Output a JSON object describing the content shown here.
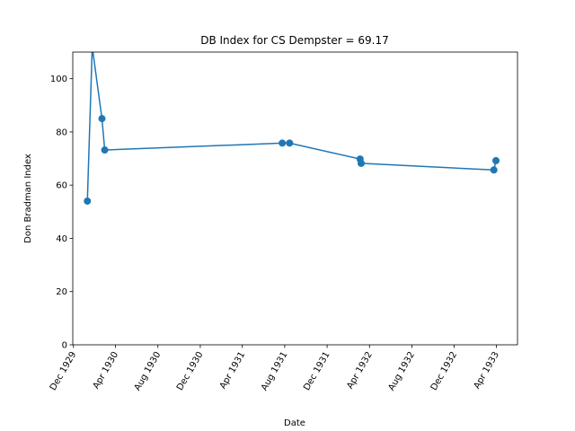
{
  "chart_data": {
    "type": "line",
    "title": "DB Index for CS Dempster = 69.17",
    "xlabel": "Date",
    "ylabel": "Don Bradman Index",
    "ylim": [
      0,
      110
    ],
    "xlim": [
      "1929-11-29",
      "1933-06-01"
    ],
    "grid": false,
    "legend": "none",
    "line_color": "#1f77b4",
    "x_ticks": [
      {
        "date": "1929-12-01",
        "label": "Dec 1929"
      },
      {
        "date": "1930-04-01",
        "label": "Apr 1930"
      },
      {
        "date": "1930-08-01",
        "label": "Aug 1930"
      },
      {
        "date": "1930-12-01",
        "label": "Dec 1930"
      },
      {
        "date": "1931-04-01",
        "label": "Apr 1931"
      },
      {
        "date": "1931-08-01",
        "label": "Aug 1931"
      },
      {
        "date": "1931-12-01",
        "label": "Dec 1931"
      },
      {
        "date": "1932-04-01",
        "label": "Apr 1932"
      },
      {
        "date": "1932-08-01",
        "label": "Aug 1932"
      },
      {
        "date": "1932-12-01",
        "label": "Dec 1932"
      },
      {
        "date": "1933-04-01",
        "label": "Apr 1933"
      }
    ],
    "y_ticks": [
      0,
      20,
      40,
      60,
      80,
      100
    ],
    "series": [
      {
        "points": [
          {
            "x": "1930-01-10",
            "y": 54.0
          },
          {
            "x": "1930-01-24",
            "y": 112.0
          },
          {
            "x": "1930-02-21",
            "y": 85.0
          },
          {
            "x": "1930-03-01",
            "y": 73.2
          },
          {
            "x": "1931-07-25",
            "y": 75.8
          },
          {
            "x": "1931-08-15",
            "y": 75.8
          },
          {
            "x": "1932-03-05",
            "y": 69.8
          },
          {
            "x": "1932-03-08",
            "y": 68.2
          },
          {
            "x": "1933-03-25",
            "y": 65.7
          },
          {
            "x": "1933-03-31",
            "y": 69.2
          }
        ]
      }
    ]
  }
}
